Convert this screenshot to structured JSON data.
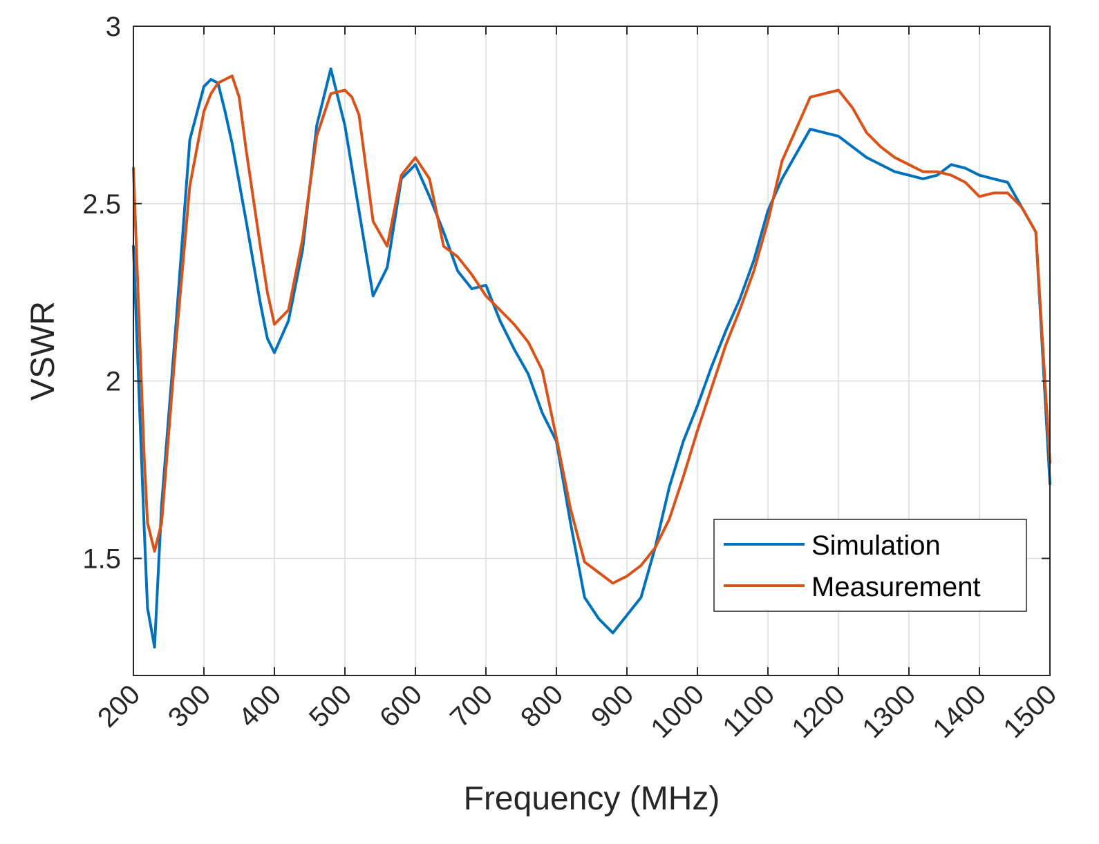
{
  "chart_data": {
    "type": "line",
    "title": "",
    "xlabel": "Frequency (MHz)",
    "ylabel": "VSWR",
    "xlim": [
      200,
      1500
    ],
    "ylim": [
      1.17,
      3
    ],
    "grid": true,
    "legend_position": "bottom-right",
    "x_ticks": [
      200,
      300,
      400,
      500,
      600,
      700,
      800,
      900,
      1000,
      1100,
      1200,
      1300,
      1400,
      1500
    ],
    "x_tick_labels": [
      "200",
      "300",
      "400",
      "500",
      "600",
      "700",
      "800",
      "900",
      "1000",
      "1100",
      "1200",
      "1300",
      "1400",
      "1500"
    ],
    "y_ticks": [
      1.5,
      2,
      2.5,
      3
    ],
    "y_tick_labels": [
      "1.5",
      "2",
      "2.5",
      "3"
    ],
    "series": [
      {
        "name": "Simulation",
        "color": "#0072BD",
        "x": [
          200,
          215,
          220,
          230,
          240,
          260,
          280,
          300,
          310,
          320,
          330,
          340,
          360,
          380,
          390,
          400,
          420,
          440,
          460,
          480,
          500,
          520,
          540,
          560,
          580,
          600,
          620,
          640,
          660,
          680,
          700,
          720,
          740,
          760,
          780,
          800,
          820,
          840,
          860,
          880,
          900,
          920,
          940,
          960,
          980,
          1000,
          1020,
          1040,
          1060,
          1080,
          1100,
          1120,
          1140,
          1160,
          1180,
          1200,
          1220,
          1240,
          1260,
          1280,
          1300,
          1320,
          1340,
          1360,
          1380,
          1400,
          1420,
          1440,
          1460,
          1480,
          1500
        ],
        "y": [
          2.38,
          1.6,
          1.36,
          1.25,
          1.65,
          2.15,
          2.68,
          2.83,
          2.85,
          2.84,
          2.76,
          2.67,
          2.45,
          2.22,
          2.12,
          2.08,
          2.17,
          2.37,
          2.72,
          2.88,
          2.72,
          2.48,
          2.24,
          2.32,
          2.57,
          2.61,
          2.52,
          2.42,
          2.31,
          2.26,
          2.27,
          2.17,
          2.09,
          2.02,
          1.91,
          1.83,
          1.6,
          1.39,
          1.33,
          1.29,
          1.34,
          1.39,
          1.53,
          1.7,
          1.83,
          1.93,
          2.04,
          2.14,
          2.23,
          2.34,
          2.48,
          2.57,
          2.64,
          2.71,
          2.7,
          2.69,
          2.66,
          2.63,
          2.61,
          2.59,
          2.58,
          2.57,
          2.58,
          2.61,
          2.6,
          2.58,
          2.57,
          2.56,
          2.49,
          2.42,
          1.71
        ]
      },
      {
        "name": "Measurement",
        "color": "#D95319",
        "x": [
          200,
          215,
          220,
          230,
          240,
          260,
          280,
          300,
          310,
          320,
          330,
          340,
          350,
          360,
          380,
          390,
          400,
          420,
          440,
          460,
          480,
          500,
          510,
          520,
          530,
          540,
          560,
          580,
          600,
          620,
          640,
          660,
          680,
          700,
          720,
          740,
          760,
          780,
          800,
          820,
          840,
          860,
          880,
          900,
          920,
          940,
          960,
          980,
          1000,
          1020,
          1040,
          1060,
          1080,
          1100,
          1120,
          1140,
          1160,
          1180,
          1200,
          1220,
          1240,
          1260,
          1280,
          1300,
          1320,
          1340,
          1360,
          1380,
          1400,
          1420,
          1440,
          1460,
          1480,
          1500
        ],
        "y": [
          2.6,
          1.8,
          1.6,
          1.52,
          1.6,
          2.1,
          2.55,
          2.76,
          2.81,
          2.84,
          2.85,
          2.86,
          2.8,
          2.65,
          2.38,
          2.25,
          2.16,
          2.2,
          2.4,
          2.69,
          2.81,
          2.82,
          2.8,
          2.75,
          2.6,
          2.45,
          2.38,
          2.58,
          2.63,
          2.57,
          2.38,
          2.35,
          2.3,
          2.24,
          2.2,
          2.16,
          2.11,
          2.03,
          1.84,
          1.64,
          1.49,
          1.46,
          1.43,
          1.45,
          1.48,
          1.53,
          1.61,
          1.73,
          1.86,
          1.98,
          2.1,
          2.2,
          2.31,
          2.45,
          2.62,
          2.71,
          2.8,
          2.81,
          2.82,
          2.77,
          2.7,
          2.66,
          2.63,
          2.61,
          2.59,
          2.59,
          2.58,
          2.56,
          2.52,
          2.53,
          2.53,
          2.49,
          2.42,
          1.77
        ]
      }
    ]
  }
}
